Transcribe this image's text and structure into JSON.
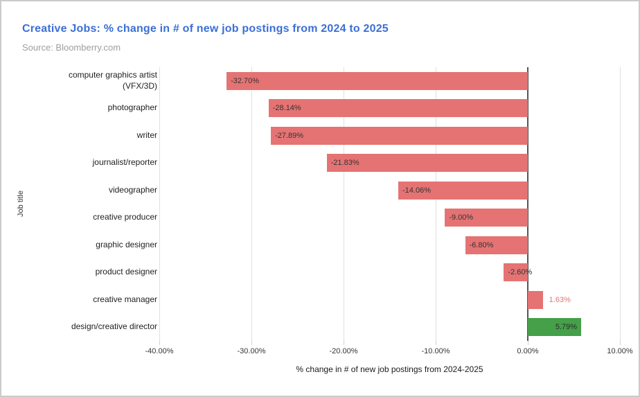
{
  "header": {
    "title": "Creative Jobs: % change in # of new job postings from 2024 to 2025",
    "source": "Source: Bloomberry.com"
  },
  "chart_data": {
    "type": "bar",
    "orientation": "horizontal",
    "title": "Creative Jobs: % change in # of new job postings from 2024 to 2025",
    "subtitle": "Source: Bloomberry.com",
    "xlabel": "% change in # of new job postings from 2024-2025",
    "ylabel": "Job title",
    "xlim": [
      -40,
      10
    ],
    "xticks": [
      -40,
      -30,
      -20,
      -10,
      0,
      10
    ],
    "xtick_labels": [
      "-40.00%",
      "-30.00%",
      "-20.00%",
      "-10.00%",
      "0.00%",
      "10.00%"
    ],
    "grid": true,
    "legend": false,
    "categories": [
      "computer graphics artist\n(VFX/3D)",
      "photographer",
      "writer",
      "journalist/reporter",
      "videographer",
      "creative producer",
      "graphic designer",
      "product designer",
      "creative manager",
      "design/creative director"
    ],
    "values": [
      -32.7,
      -28.14,
      -27.89,
      -21.83,
      -14.06,
      -9.0,
      -6.8,
      -2.6,
      1.63,
      5.79
    ],
    "value_labels": [
      "-32.70%",
      "-28.14%",
      "-27.89%",
      "-21.83%",
      "-14.06%",
      "-9.00%",
      "-6.80%",
      "-2.60%",
      "1.63%",
      "5.79%"
    ],
    "bar_colors": [
      "#e57373",
      "#e57373",
      "#e57373",
      "#e57373",
      "#e57373",
      "#e57373",
      "#e57373",
      "#e57373",
      "#e57373",
      "#45a049"
    ],
    "value_label_placements": [
      "inside-start",
      "inside-start",
      "inside-start",
      "inside-start",
      "inside-start",
      "inside-start",
      "inside-start",
      "inside-start",
      "outside-end",
      "inside-end"
    ],
    "value_label_colors": [
      "#333333",
      "#333333",
      "#333333",
      "#333333",
      "#333333",
      "#333333",
      "#333333",
      "#333333",
      "#e57373",
      "#2b2b2b"
    ],
    "colors": {
      "negative": "#e57373",
      "positive": "#45a049",
      "gridline": "#e0e0e0",
      "zero_axis": "#555555",
      "title": "#3b6fd6",
      "subtitle": "#9e9e9e"
    }
  }
}
